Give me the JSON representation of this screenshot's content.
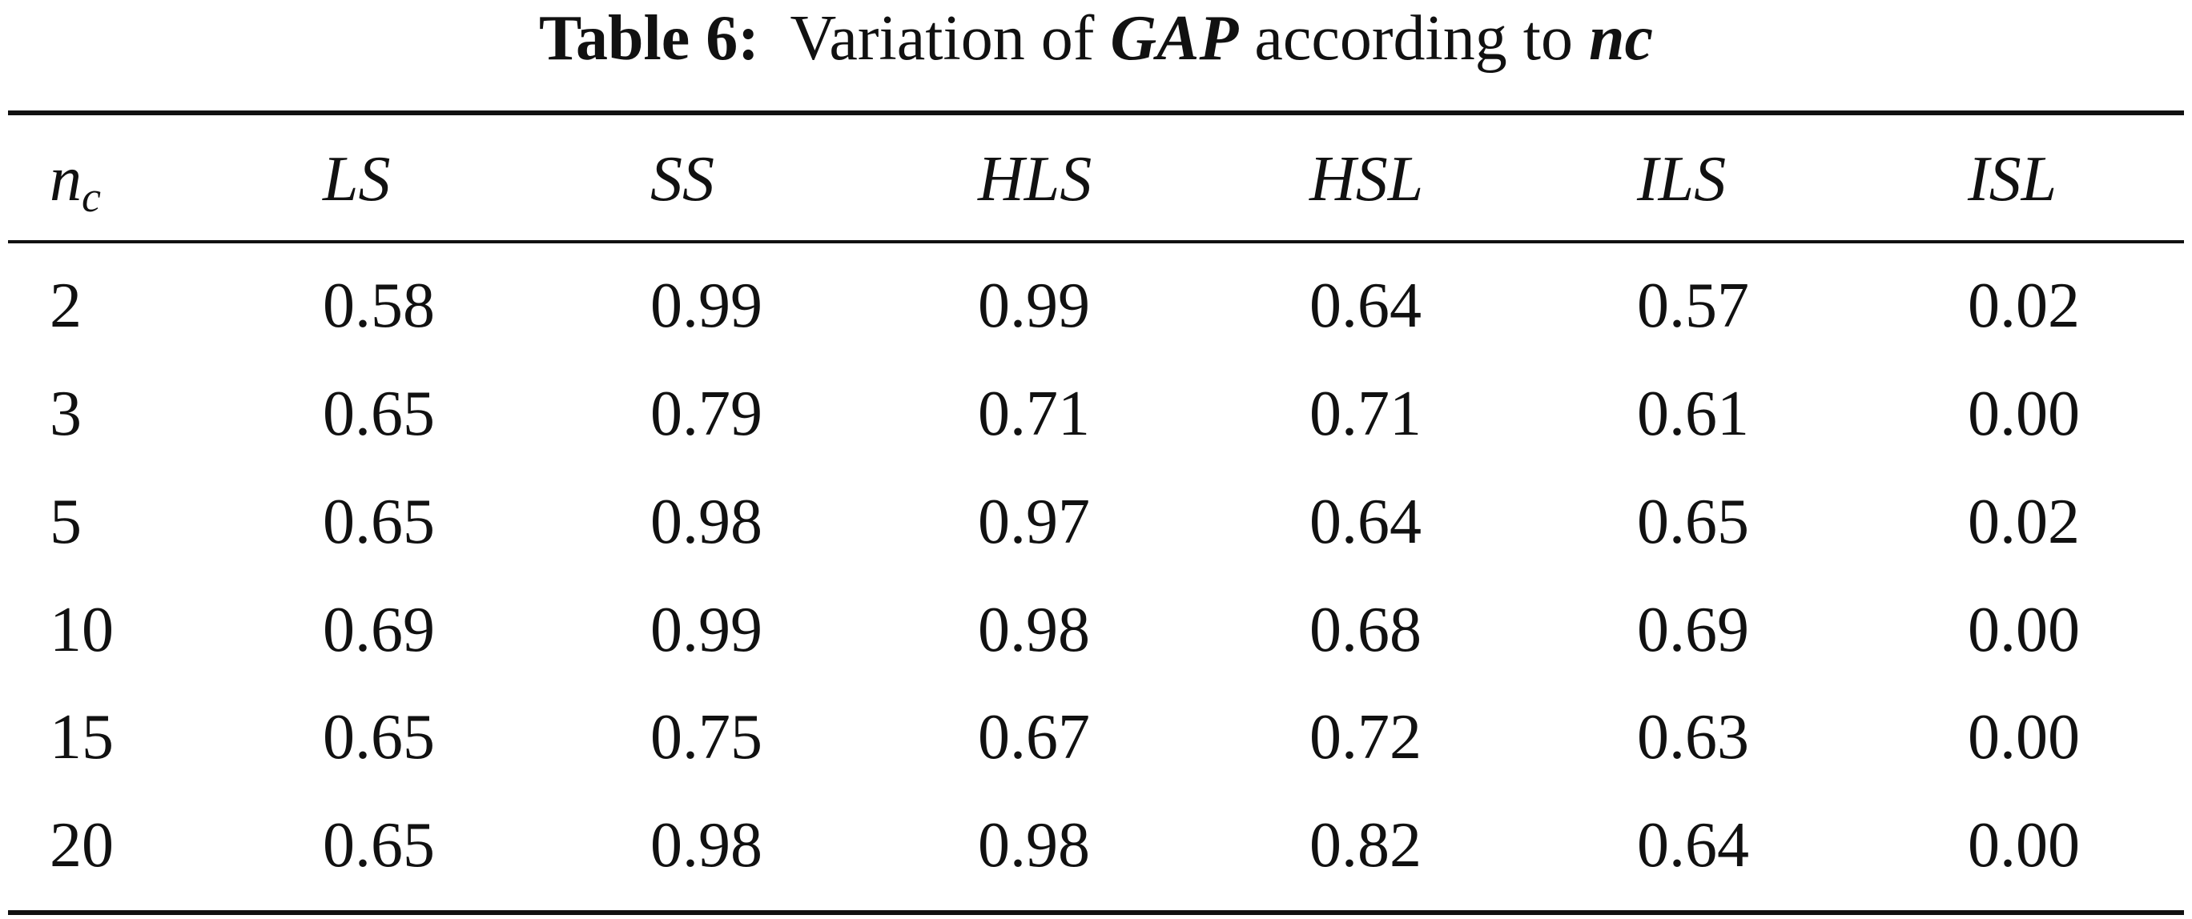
{
  "caption": {
    "label": "Table 6:",
    "text_before": "Variation of",
    "var1": "GAP",
    "text_middle": "according to",
    "var2": "nc"
  },
  "table": {
    "header": {
      "nc_main": "n",
      "nc_sub": "c",
      "cols": [
        "LS",
        "SS",
        "HLS",
        "HSL",
        "ILS",
        "ISL"
      ]
    },
    "rows": [
      {
        "nc": "2",
        "values": [
          "0.58",
          "0.99",
          "0.99",
          "0.64",
          "0.57",
          "0.02"
        ]
      },
      {
        "nc": "3",
        "values": [
          "0.65",
          "0.79",
          "0.71",
          "0.71",
          "0.61",
          "0.00"
        ]
      },
      {
        "nc": "5",
        "values": [
          "0.65",
          "0.98",
          "0.97",
          "0.64",
          "0.65",
          "0.02"
        ]
      },
      {
        "nc": "10",
        "values": [
          "0.69",
          "0.99",
          "0.98",
          "0.68",
          "0.69",
          "0.00"
        ]
      },
      {
        "nc": "15",
        "values": [
          "0.65",
          "0.75",
          "0.67",
          "0.72",
          "0.63",
          "0.00"
        ]
      },
      {
        "nc": "20",
        "values": [
          "0.65",
          "0.98",
          "0.98",
          "0.82",
          "0.64",
          "0.00"
        ]
      }
    ]
  }
}
